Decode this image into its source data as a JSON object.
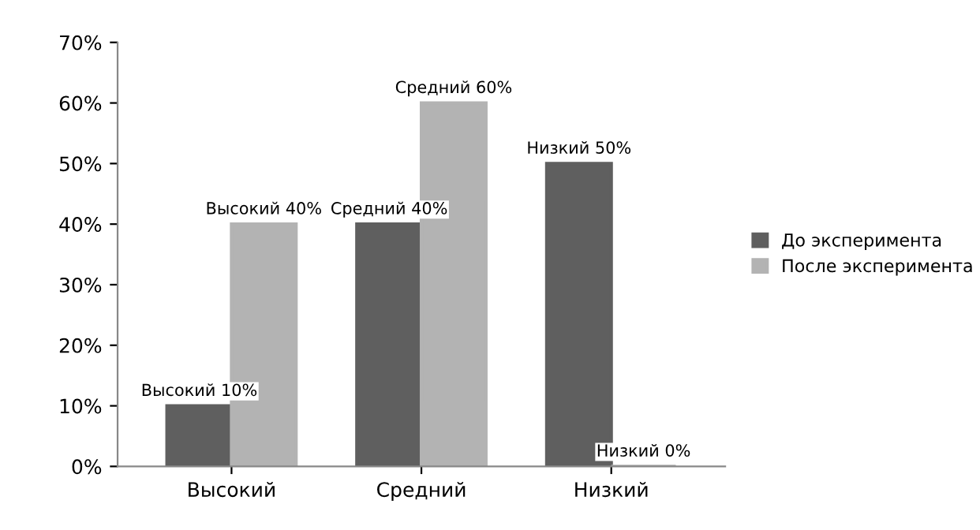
{
  "chart_data": {
    "type": "bar",
    "categories": [
      "Высокий",
      "Средний",
      "Низкий"
    ],
    "series": [
      {
        "name": "До эксперимента",
        "color": "#5f5f5f",
        "values": [
          10,
          40,
          50
        ],
        "value_labels": [
          "Высокий 10%",
          "Средний 40%",
          "Низкий 50%"
        ]
      },
      {
        "name": "После эксперимента",
        "color": "#b3b3b3",
        "values": [
          40,
          60,
          0
        ],
        "value_labels": [
          "Высокий 40%",
          "Средний 60%",
          "Низкий 0%"
        ]
      }
    ],
    "ylim": [
      0,
      70
    ],
    "yticks": [
      {
        "value": 0,
        "label": "0%"
      },
      {
        "value": 10,
        "label": "10%"
      },
      {
        "value": 20,
        "label": "20%"
      },
      {
        "value": 30,
        "label": "30%"
      },
      {
        "value": 40,
        "label": "40%"
      },
      {
        "value": 50,
        "label": "50%"
      },
      {
        "value": 60,
        "label": "60%"
      },
      {
        "value": 70,
        "label": "70%"
      }
    ],
    "grid": false,
    "legend": "right"
  }
}
